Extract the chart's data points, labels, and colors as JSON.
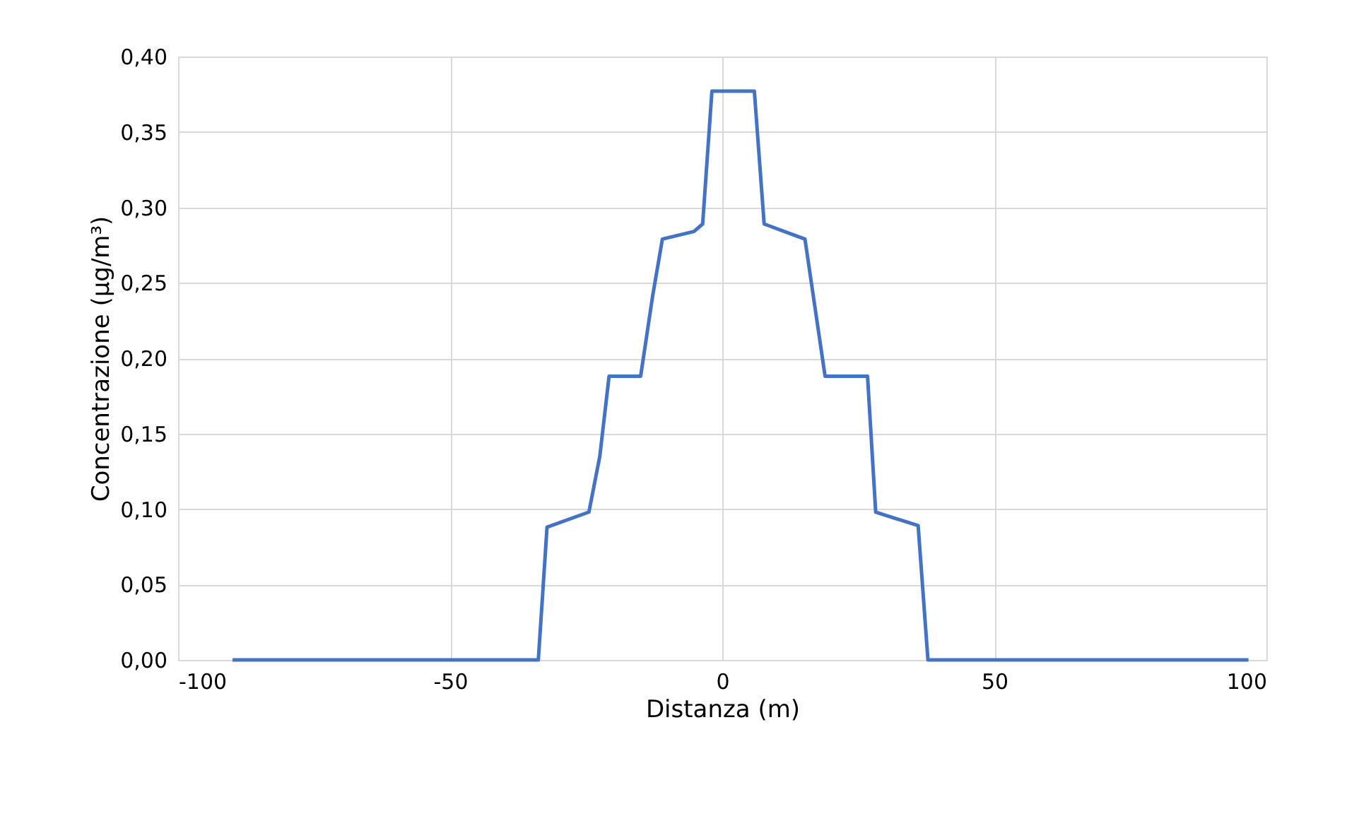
{
  "chart_data": {
    "type": "line",
    "xlabel": "Distanza (m)",
    "ylabel": "Concentrazione (µg/m³)",
    "series": [
      {
        "color": "#4472c4",
        "x": [
          -90,
          -33.8,
          -32.2,
          -24.5,
          -22.5,
          -20.8,
          -15,
          -12.8,
          -11,
          -5.2,
          -3.6,
          -1.9,
          5.9,
          7.7,
          12.9,
          15.2,
          18.9,
          26.7,
          28.2,
          36,
          37.8,
          96.7
        ],
        "values": [
          0,
          0,
          0.088,
          0.098,
          0.135,
          0.188,
          0.188,
          0.241,
          0.279,
          0.284,
          0.289,
          0.377,
          0.377,
          0.289,
          0.282,
          0.279,
          0.188,
          0.188,
          0.098,
          0.089,
          0,
          0
        ]
      }
    ],
    "xlim": [
      -100,
      100
    ],
    "xticks": [
      -100,
      -50,
      0,
      50,
      100
    ],
    "ylim": [
      0,
      0.4
    ],
    "yticks": [
      {
        "value": 0,
        "label": "0,00"
      },
      {
        "value": 0.05,
        "label": "0,05"
      },
      {
        "value": 0.1,
        "label": "0,10"
      },
      {
        "value": 0.15,
        "label": "0,15"
      },
      {
        "value": 0.2,
        "label": "0,20"
      },
      {
        "value": 0.25,
        "label": "0,25"
      },
      {
        "value": 0.3,
        "label": "0,30"
      },
      {
        "value": 0.35,
        "label": "0,35"
      },
      {
        "value": 0.4,
        "label": "0,40"
      }
    ],
    "grid": true,
    "marker": "none",
    "line_style": "solid"
  }
}
